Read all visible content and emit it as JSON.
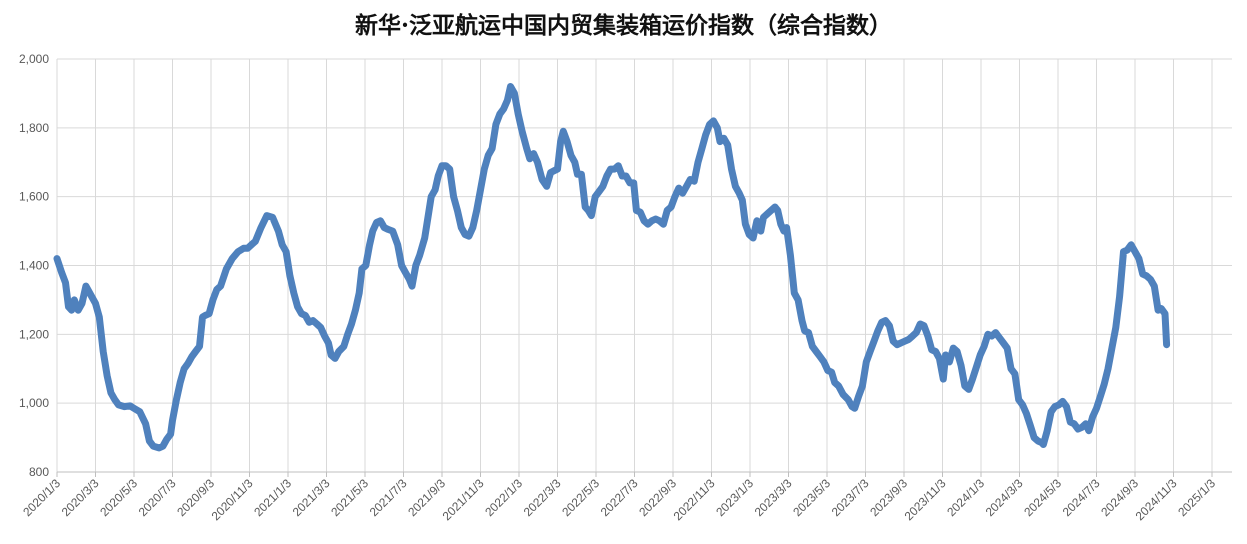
{
  "chart_data": {
    "type": "line",
    "title": "新华·泛亚航运中国内贸集装箱运价指数（综合指数）",
    "xlabel": "",
    "ylabel": "",
    "ylim": [
      800,
      2000
    ],
    "yticks": [
      800,
      1000,
      1200,
      1400,
      1600,
      1800,
      2000
    ],
    "ytick_labels": [
      "800",
      "1,000",
      "1,200",
      "1,400",
      "1,600",
      "1,800",
      "2,000"
    ],
    "xtick_labels": [
      "2020/1/3",
      "2020/3/3",
      "2020/5/3",
      "2020/7/3",
      "2020/9/3",
      "2020/11/3",
      "2021/1/3",
      "2021/3/3",
      "2021/5/3",
      "2021/7/3",
      "2021/9/3",
      "2021/11/3",
      "2022/1/3",
      "2022/3/3",
      "2022/5/3",
      "2022/7/3",
      "2022/9/3",
      "2022/11/3",
      "2023/1/3",
      "2023/3/3",
      "2023/5/3",
      "2023/7/3",
      "2023/9/3",
      "2023/11/3",
      "2024/1/3",
      "2024/3/3",
      "2024/5/3",
      "2024/7/3",
      "2024/9/3",
      "2024/11/3",
      "2025/1/3"
    ],
    "grid": true,
    "legend": "none",
    "line_color": "#4F81BD",
    "series": [
      {
        "points": [
          [
            0,
            1420
          ],
          [
            0.12,
            1380
          ],
          [
            0.22,
            1350
          ],
          [
            0.3,
            1280
          ],
          [
            0.38,
            1270
          ],
          [
            0.45,
            1300
          ],
          [
            0.55,
            1270
          ],
          [
            0.65,
            1290
          ],
          [
            0.75,
            1340
          ],
          [
            0.85,
            1320
          ],
          [
            1.0,
            1290
          ],
          [
            1.1,
            1250
          ],
          [
            1.2,
            1150
          ],
          [
            1.3,
            1080
          ],
          [
            1.4,
            1030
          ],
          [
            1.5,
            1010
          ],
          [
            1.6,
            995
          ],
          [
            1.75,
            990
          ],
          [
            1.9,
            992
          ],
          [
            2.0,
            985
          ],
          [
            2.15,
            975
          ],
          [
            2.3,
            940
          ],
          [
            2.4,
            890
          ],
          [
            2.5,
            875
          ],
          [
            2.65,
            870
          ],
          [
            2.75,
            875
          ],
          [
            2.85,
            895
          ],
          [
            2.95,
            910
          ],
          [
            3.0,
            950
          ],
          [
            3.1,
            1010
          ],
          [
            3.2,
            1060
          ],
          [
            3.3,
            1100
          ],
          [
            3.4,
            1115
          ],
          [
            3.5,
            1135
          ],
          [
            3.6,
            1150
          ],
          [
            3.7,
            1165
          ],
          [
            3.78,
            1250
          ],
          [
            3.85,
            1255
          ],
          [
            3.95,
            1260
          ],
          [
            4.05,
            1300
          ],
          [
            4.15,
            1330
          ],
          [
            4.25,
            1340
          ],
          [
            4.4,
            1390
          ],
          [
            4.55,
            1420
          ],
          [
            4.7,
            1440
          ],
          [
            4.85,
            1450
          ],
          [
            4.95,
            1450
          ],
          [
            5.05,
            1460
          ],
          [
            5.15,
            1470
          ],
          [
            5.3,
            1510
          ],
          [
            5.45,
            1545
          ],
          [
            5.6,
            1540
          ],
          [
            5.75,
            1500
          ],
          [
            5.85,
            1460
          ],
          [
            5.95,
            1440
          ],
          [
            6.05,
            1370
          ],
          [
            6.15,
            1320
          ],
          [
            6.25,
            1280
          ],
          [
            6.35,
            1260
          ],
          [
            6.45,
            1255
          ],
          [
            6.55,
            1235
          ],
          [
            6.65,
            1240
          ],
          [
            6.75,
            1230
          ],
          [
            6.85,
            1220
          ],
          [
            6.95,
            1195
          ],
          [
            7.05,
            1175
          ],
          [
            7.12,
            1140
          ],
          [
            7.22,
            1130
          ],
          [
            7.32,
            1150
          ],
          [
            7.45,
            1165
          ],
          [
            7.55,
            1200
          ],
          [
            7.65,
            1230
          ],
          [
            7.75,
            1270
          ],
          [
            7.85,
            1320
          ],
          [
            7.92,
            1390
          ],
          [
            8.02,
            1400
          ],
          [
            8.12,
            1460
          ],
          [
            8.2,
            1500
          ],
          [
            8.3,
            1525
          ],
          [
            8.4,
            1530
          ],
          [
            8.5,
            1510
          ],
          [
            8.6,
            1505
          ],
          [
            8.72,
            1500
          ],
          [
            8.85,
            1460
          ],
          [
            8.95,
            1400
          ],
          [
            9.05,
            1380
          ],
          [
            9.15,
            1360
          ],
          [
            9.22,
            1340
          ],
          [
            9.32,
            1400
          ],
          [
            9.42,
            1430
          ],
          [
            9.55,
            1480
          ],
          [
            9.65,
            1550
          ],
          [
            9.72,
            1600
          ],
          [
            9.82,
            1620
          ],
          [
            9.9,
            1660
          ],
          [
            10.0,
            1690
          ],
          [
            10.1,
            1690
          ],
          [
            10.2,
            1680
          ],
          [
            10.3,
            1600
          ],
          [
            10.4,
            1560
          ],
          [
            10.5,
            1510
          ],
          [
            10.6,
            1490
          ],
          [
            10.7,
            1485
          ],
          [
            10.8,
            1510
          ],
          [
            10.9,
            1560
          ],
          [
            11.0,
            1620
          ],
          [
            11.1,
            1680
          ],
          [
            11.2,
            1720
          ],
          [
            11.3,
            1740
          ],
          [
            11.4,
            1810
          ],
          [
            11.5,
            1840
          ],
          [
            11.6,
            1855
          ],
          [
            11.7,
            1880
          ],
          [
            11.78,
            1920
          ],
          [
            11.88,
            1900
          ],
          [
            11.98,
            1840
          ],
          [
            12.08,
            1790
          ],
          [
            12.2,
            1740
          ],
          [
            12.28,
            1710
          ],
          [
            12.38,
            1725
          ],
          [
            12.48,
            1700
          ],
          [
            12.6,
            1650
          ],
          [
            12.72,
            1630
          ],
          [
            12.82,
            1670
          ],
          [
            12.9,
            1675
          ],
          [
            13.0,
            1680
          ],
          [
            13.08,
            1760
          ],
          [
            13.15,
            1790
          ],
          [
            13.25,
            1760
          ],
          [
            13.35,
            1720
          ],
          [
            13.45,
            1700
          ],
          [
            13.52,
            1665
          ],
          [
            13.62,
            1665
          ],
          [
            13.72,
            1570
          ],
          [
            13.8,
            1560
          ],
          [
            13.88,
            1545
          ],
          [
            13.98,
            1600
          ],
          [
            14.08,
            1615
          ],
          [
            14.18,
            1630
          ],
          [
            14.28,
            1660
          ],
          [
            14.38,
            1680
          ],
          [
            14.48,
            1680
          ],
          [
            14.58,
            1690
          ],
          [
            14.68,
            1660
          ],
          [
            14.78,
            1660
          ],
          [
            14.88,
            1640
          ],
          [
            14.98,
            1640
          ],
          [
            15.05,
            1560
          ],
          [
            15.15,
            1555
          ],
          [
            15.25,
            1530
          ],
          [
            15.35,
            1520
          ],
          [
            15.45,
            1530
          ],
          [
            15.55,
            1535
          ],
          [
            15.65,
            1530
          ],
          [
            15.75,
            1520
          ],
          [
            15.85,
            1560
          ],
          [
            15.95,
            1570
          ],
          [
            16.05,
            1600
          ],
          [
            16.15,
            1625
          ],
          [
            16.25,
            1610
          ],
          [
            16.35,
            1630
          ],
          [
            16.45,
            1650
          ],
          [
            16.55,
            1645
          ],
          [
            16.65,
            1700
          ],
          [
            16.75,
            1740
          ],
          [
            16.85,
            1780
          ],
          [
            16.95,
            1810
          ],
          [
            17.05,
            1820
          ],
          [
            17.15,
            1800
          ],
          [
            17.22,
            1760
          ],
          [
            17.32,
            1770
          ],
          [
            17.42,
            1750
          ],
          [
            17.52,
            1680
          ],
          [
            17.62,
            1630
          ],
          [
            17.72,
            1610
          ],
          [
            17.8,
            1590
          ],
          [
            17.88,
            1520
          ],
          [
            17.98,
            1490
          ],
          [
            18.08,
            1480
          ],
          [
            18.18,
            1530
          ],
          [
            18.28,
            1500
          ],
          [
            18.35,
            1540
          ],
          [
            18.45,
            1550
          ],
          [
            18.55,
            1560
          ],
          [
            18.65,
            1570
          ],
          [
            18.72,
            1560
          ],
          [
            18.8,
            1520
          ],
          [
            18.88,
            1500
          ],
          [
            18.95,
            1510
          ],
          [
            19.05,
            1430
          ],
          [
            19.15,
            1320
          ],
          [
            19.25,
            1300
          ],
          [
            19.35,
            1240
          ],
          [
            19.42,
            1210
          ],
          [
            19.52,
            1205
          ],
          [
            19.62,
            1165
          ],
          [
            19.72,
            1150
          ],
          [
            19.82,
            1135
          ],
          [
            19.92,
            1120
          ],
          [
            20.02,
            1095
          ],
          [
            20.12,
            1090
          ],
          [
            20.2,
            1060
          ],
          [
            20.3,
            1050
          ],
          [
            20.42,
            1025
          ],
          [
            20.55,
            1010
          ],
          [
            20.65,
            990
          ],
          [
            20.72,
            985
          ],
          [
            20.82,
            1020
          ],
          [
            20.92,
            1050
          ],
          [
            21.02,
            1120
          ],
          [
            21.12,
            1150
          ],
          [
            21.22,
            1180
          ],
          [
            21.32,
            1210
          ],
          [
            21.42,
            1235
          ],
          [
            21.52,
            1240
          ],
          [
            21.62,
            1225
          ],
          [
            21.72,
            1180
          ],
          [
            21.82,
            1170
          ],
          [
            21.92,
            1175
          ],
          [
            22.02,
            1180
          ],
          [
            22.12,
            1185
          ],
          [
            22.22,
            1195
          ],
          [
            22.32,
            1205
          ],
          [
            22.42,
            1230
          ],
          [
            22.52,
            1225
          ],
          [
            22.62,
            1195
          ],
          [
            22.72,
            1155
          ],
          [
            22.82,
            1150
          ],
          [
            22.92,
            1130
          ],
          [
            23.02,
            1070
          ],
          [
            23.08,
            1140
          ],
          [
            23.18,
            1120
          ],
          [
            23.28,
            1160
          ],
          [
            23.38,
            1150
          ],
          [
            23.48,
            1110
          ],
          [
            23.58,
            1050
          ],
          [
            23.68,
            1040
          ],
          [
            23.78,
            1070
          ],
          [
            23.88,
            1105
          ],
          [
            23.98,
            1140
          ],
          [
            24.08,
            1165
          ],
          [
            24.18,
            1200
          ],
          [
            24.28,
            1195
          ],
          [
            24.38,
            1205
          ],
          [
            24.48,
            1190
          ],
          [
            24.58,
            1175
          ],
          [
            24.68,
            1160
          ],
          [
            24.78,
            1100
          ],
          [
            24.88,
            1085
          ],
          [
            24.98,
            1010
          ],
          [
            25.08,
            995
          ],
          [
            25.18,
            970
          ],
          [
            25.28,
            935
          ],
          [
            25.38,
            900
          ],
          [
            25.48,
            890
          ],
          [
            25.58,
            885
          ],
          [
            25.62,
            880
          ],
          [
            25.72,
            920
          ],
          [
            25.82,
            975
          ],
          [
            25.92,
            990
          ],
          [
            26.02,
            995
          ],
          [
            26.12,
            1005
          ],
          [
            26.22,
            990
          ],
          [
            26.32,
            945
          ],
          [
            26.42,
            940
          ],
          [
            26.52,
            925
          ],
          [
            26.62,
            930
          ],
          [
            26.72,
            940
          ],
          [
            26.8,
            920
          ],
          [
            26.9,
            960
          ],
          [
            27.0,
            985
          ],
          [
            27.1,
            1020
          ],
          [
            27.2,
            1055
          ],
          [
            27.3,
            1100
          ],
          [
            27.4,
            1160
          ],
          [
            27.5,
            1220
          ],
          [
            27.6,
            1310
          ],
          [
            27.7,
            1440
          ],
          [
            27.8,
            1445
          ],
          [
            27.9,
            1460
          ],
          [
            28.0,
            1440
          ],
          [
            28.1,
            1420
          ],
          [
            28.2,
            1375
          ],
          [
            28.3,
            1370
          ],
          [
            28.4,
            1360
          ],
          [
            28.5,
            1340
          ],
          [
            28.6,
            1270
          ],
          [
            28.68,
            1275
          ],
          [
            28.78,
            1260
          ],
          [
            28.82,
            1170
          ]
        ]
      }
    ]
  }
}
